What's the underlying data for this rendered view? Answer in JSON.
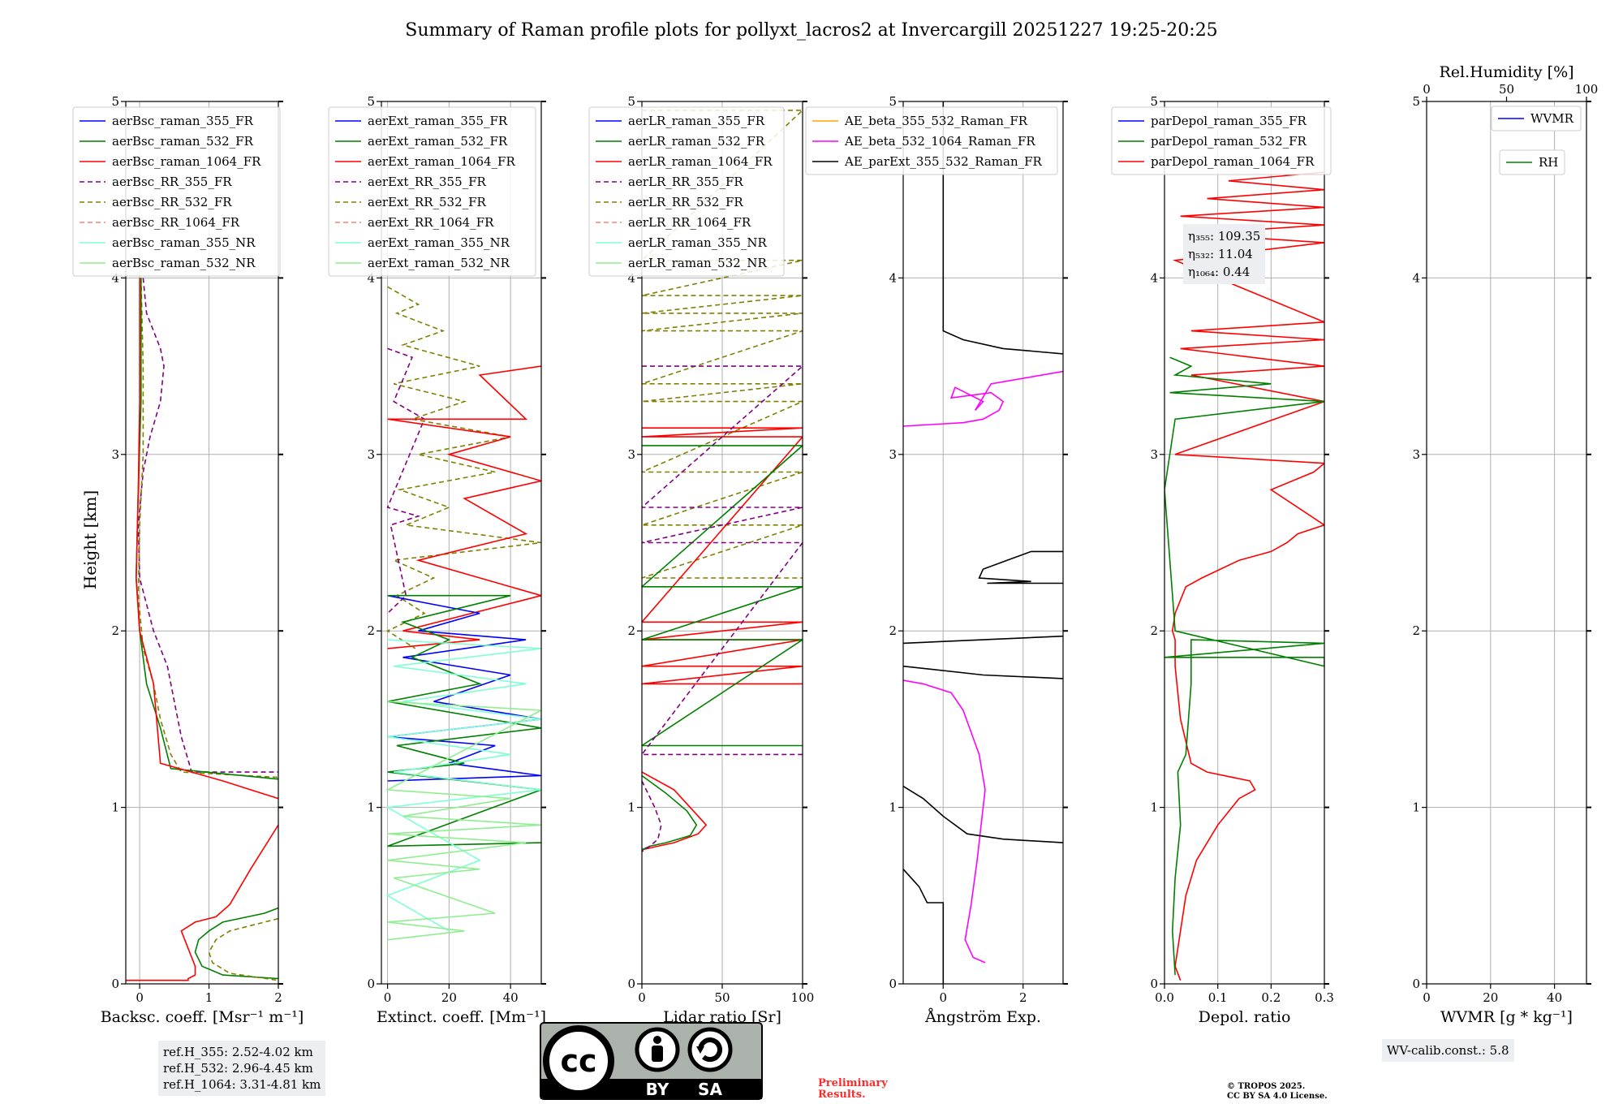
{
  "title": "Summary of Raman profile plots for pollyxt_lacros2 at Invercargill 20251227 19:25-20:25",
  "y_axis_label": "Height [km]",
  "y_ticks": [
    "0",
    "1",
    "2",
    "3",
    "4",
    "5"
  ],
  "colors": {
    "blue": "#0000ff",
    "green": "#008000",
    "red": "#ff0000",
    "purple": "#800080",
    "olive": "#808000",
    "salmon": "#fa8072",
    "cyan": "#7fffd4",
    "lightgreen": "#90ee90",
    "orange": "#ffa500",
    "magenta": "#ff00ff",
    "black": "#000000"
  },
  "chart_data": [
    {
      "type": "line",
      "xlabel": "Backsc. coeff. [Msr⁻¹ m⁻¹]",
      "xlim": [
        -0.2,
        2
      ],
      "ylim": [
        0,
        5
      ],
      "xticks": [
        "0",
        "1",
        "2"
      ],
      "legend": [
        "aerBsc_raman_355_FR",
        "aerBsc_raman_532_FR",
        "aerBsc_raman_1064_FR",
        "aerBsc_RR_355_FR",
        "aerBsc_RR_532_FR",
        "aerBsc_RR_1064_FR",
        "aerBsc_raman_355_NR",
        "aerBsc_raman_532_NR"
      ],
      "series": [
        {
          "name": "aerBsc_RR_355_FR",
          "x": [
            0.05,
            0.1,
            0.2,
            0.3,
            0.35,
            0.3,
            0.15,
            0.05,
            -0.02,
            0.0,
            0.2,
            0.4,
            0.5,
            0.6,
            0.75,
            2.0
          ],
          "y": [
            4.0,
            3.8,
            3.7,
            3.6,
            3.5,
            3.3,
            3.1,
            2.9,
            2.6,
            2.3,
            2.0,
            1.8,
            1.6,
            1.4,
            1.2,
            1.2
          ]
        },
        {
          "name": "aerBsc_RR_532_FR",
          "x": [
            0.02,
            0.05,
            0.05,
            0.0,
            -0.02,
            0.05,
            0.2,
            0.3,
            0.45,
            0.6,
            2.0
          ],
          "y": [
            4.0,
            3.5,
            3.0,
            2.6,
            2.2,
            1.9,
            1.7,
            1.5,
            1.3,
            1.2,
            1.17
          ]
        },
        {
          "name": "aerBsc_raman_532_FR",
          "x": [
            0.02,
            0.02,
            -0.02,
            -0.05,
            0.0,
            0.1,
            0.3,
            0.45,
            2.0
          ],
          "y": [
            4.0,
            3.3,
            2.8,
            2.3,
            2.0,
            1.7,
            1.45,
            1.22,
            1.16
          ]
        },
        {
          "name": "aerBsc_raman_1064_FR",
          "x": [
            0.0,
            0.0,
            -0.02,
            -0.05,
            0.0,
            0.2,
            0.3,
            1.2,
            2.0
          ],
          "y": [
            4.0,
            3.3,
            2.8,
            2.3,
            2.0,
            1.7,
            1.25,
            1.15,
            1.05
          ]
        },
        {
          "name": "aerBsc_raman_1064_FR_low",
          "x": [
            2.0,
            1.6,
            1.3,
            1.1,
            0.8,
            0.6,
            0.8,
            0.8,
            0.7,
            0.7,
            -0.2
          ],
          "y": [
            0.9,
            0.65,
            0.45,
            0.38,
            0.35,
            0.3,
            0.1,
            0.05,
            0.03,
            0.02,
            0.02
          ]
        },
        {
          "name": "aerBsc_raman_532_FR_low",
          "x": [
            2.0,
            1.8,
            1.2,
            1.0,
            0.85,
            0.8,
            0.9,
            1.2,
            2.0
          ],
          "y": [
            0.43,
            0.4,
            0.35,
            0.3,
            0.25,
            0.18,
            0.1,
            0.05,
            0.03
          ]
        },
        {
          "name": "aerBsc_RR_532_FR_low",
          "x": [
            2.0,
            1.8,
            1.3,
            1.1,
            1.0,
            1.05,
            1.3,
            2.0
          ],
          "y": [
            0.37,
            0.35,
            0.3,
            0.25,
            0.18,
            0.12,
            0.06,
            0.02
          ]
        }
      ],
      "annotations": [
        "ref.H_355: 2.52-4.02 km",
        "ref.H_532: 2.96-4.45 km",
        "ref.H_1064: 3.31-4.81 km"
      ]
    },
    {
      "type": "line",
      "xlabel": "Extinct. coeff. [Mm⁻¹]",
      "xlim": [
        -2,
        50
      ],
      "ylim": [
        0,
        5
      ],
      "xticks": [
        "0",
        "20",
        "40"
      ],
      "legend": [
        "aerExt_raman_355_FR",
        "aerExt_raman_532_FR",
        "aerExt_raman_1064_FR",
        "aerExt_RR_355_FR",
        "aerExt_RR_532_FR",
        "aerExt_RR_1064_FR",
        "aerExt_raman_355_NR",
        "aerExt_raman_532_NR"
      ],
      "series": [
        {
          "name": "aerExt_RR_532_FR",
          "x": [
            0,
            10,
            3,
            18,
            5,
            30,
            2,
            25,
            8,
            40,
            10,
            35,
            4,
            20,
            6,
            50,
            2,
            15,
            3,
            12,
            0,
            9
          ],
          "y": [
            3.95,
            3.85,
            3.8,
            3.7,
            3.62,
            3.5,
            3.4,
            3.3,
            3.2,
            3.1,
            3.0,
            2.9,
            2.8,
            2.7,
            2.6,
            2.5,
            2.4,
            2.3,
            2.2,
            2.1,
            2.0,
            1.9
          ]
        },
        {
          "name": "aerExt_RR_355_FR",
          "x": [
            0,
            8,
            2,
            12,
            0,
            10,
            1,
            6,
            0
          ],
          "y": [
            3.6,
            3.55,
            3.3,
            3.2,
            2.7,
            2.65,
            2.6,
            2.2,
            2.1
          ]
        },
        {
          "name": "aerExt_raman_1064_FR",
          "x": [
            50,
            30,
            45,
            0,
            40,
            20,
            50,
            25,
            45,
            10,
            50,
            5,
            30,
            0
          ],
          "y": [
            3.5,
            3.45,
            3.2,
            3.2,
            3.1,
            3.0,
            2.85,
            2.75,
            2.55,
            2.4,
            2.2,
            2.0,
            1.95,
            1.9
          ]
        },
        {
          "name": "aerExt_raman_355_FR",
          "x": [
            0,
            30,
            10,
            45,
            5,
            40,
            15,
            50,
            0,
            35,
            20,
            50,
            0
          ],
          "y": [
            2.2,
            2.1,
            2.0,
            1.95,
            1.85,
            1.75,
            1.6,
            1.5,
            1.4,
            1.35,
            1.25,
            1.18,
            1.15
          ]
        },
        {
          "name": "aerExt_raman_532_FR",
          "x": [
            0,
            40,
            5,
            20,
            8,
            30,
            0,
            50,
            3,
            25,
            0,
            50,
            0,
            50
          ],
          "y": [
            2.2,
            2.2,
            2.05,
            1.95,
            1.85,
            1.7,
            1.6,
            1.45,
            1.35,
            1.25,
            1.2,
            1.1,
            0.78,
            0.8
          ]
        },
        {
          "name": "aerExt_raman_355_NR",
          "x": [
            0,
            50,
            2,
            45,
            5,
            50,
            0,
            40,
            2,
            50,
            0,
            30,
            0,
            20
          ],
          "y": [
            1.95,
            1.9,
            1.8,
            1.7,
            1.6,
            1.5,
            1.4,
            1.3,
            1.2,
            1.1,
            1.0,
            0.7,
            0.5,
            0.3
          ]
        },
        {
          "name": "aerExt_raman_532_NR",
          "x": [
            0,
            50,
            0,
            40,
            5,
            50,
            0,
            45,
            0,
            30,
            2,
            35,
            0,
            25,
            0
          ],
          "y": [
            1.6,
            1.55,
            1.1,
            1.05,
            0.95,
            0.9,
            0.85,
            0.8,
            0.7,
            0.65,
            0.6,
            0.4,
            0.35,
            0.3,
            0.25
          ]
        }
      ]
    },
    {
      "type": "line",
      "xlabel": "Lidar ratio [Sr]",
      "xlim": [
        0,
        100
      ],
      "ylim": [
        0,
        5
      ],
      "xticks": [
        "0",
        "50",
        "100"
      ],
      "legend": [
        "aerLR_raman_355_FR",
        "aerLR_raman_532_FR",
        "aerLR_raman_1064_FR",
        "aerLR_RR_355_FR",
        "aerLR_RR_532_FR",
        "aerLR_RR_1064_FR",
        "aerLR_raman_355_NR",
        "aerLR_raman_532_NR"
      ],
      "series": [
        {
          "name": "aerLR_RR_532_FR",
          "x": [
            0,
            100,
            0,
            100,
            0,
            100,
            0,
            100,
            0,
            100,
            0,
            100,
            0,
            100,
            0,
            100,
            0,
            100,
            0,
            100
          ],
          "y": [
            4.95,
            4.95,
            4.1,
            4.1,
            3.9,
            3.9,
            3.8,
            3.8,
            3.7,
            3.7,
            3.4,
            3.4,
            3.3,
            3.3,
            2.9,
            2.9,
            2.6,
            2.6,
            2.3,
            2.3
          ]
        },
        {
          "name": "aerLR_raman_1064_FR",
          "x": [
            0,
            100,
            0,
            100,
            0,
            100,
            0,
            100,
            0,
            100,
            0,
            100
          ],
          "y": [
            3.15,
            3.15,
            3.1,
            3.1,
            2.05,
            2.05,
            1.95,
            1.95,
            1.8,
            1.8,
            1.7,
            1.7
          ]
        },
        {
          "name": "aerLR_raman_532_FR",
          "x": [
            0,
            100,
            0,
            100,
            0,
            100,
            0,
            100
          ],
          "y": [
            3.05,
            3.05,
            2.25,
            2.25,
            1.95,
            1.95,
            1.35,
            1.35
          ]
        },
        {
          "name": "aerLR_RR_355_FR",
          "x": [
            0,
            100,
            0,
            100,
            0,
            100,
            0,
            100
          ],
          "y": [
            3.5,
            3.5,
            2.7,
            2.7,
            2.5,
            2.5,
            1.3,
            1.3
          ]
        },
        {
          "name": "aerLR_raman_1064_FR_low",
          "x": [
            0,
            20,
            30,
            40,
            35,
            20,
            10,
            0
          ],
          "y": [
            1.2,
            1.1,
            1.0,
            0.9,
            0.85,
            0.8,
            0.78,
            0.76
          ]
        },
        {
          "name": "aerLR_raman_532_FR_low",
          "x": [
            0,
            15,
            28,
            34,
            30,
            15,
            5,
            0
          ],
          "y": [
            1.18,
            1.08,
            0.98,
            0.9,
            0.84,
            0.8,
            0.78,
            0.76
          ]
        },
        {
          "name": "aerLR_RR_355_FR_low",
          "x": [
            0,
            8,
            12,
            10,
            5,
            0
          ],
          "y": [
            1.15,
            1.0,
            0.9,
            0.82,
            0.78,
            0.75
          ]
        }
      ]
    },
    {
      "type": "line",
      "xlabel": "Ångström Exp.",
      "xlim": [
        -1,
        3
      ],
      "ylim": [
        0,
        5
      ],
      "xticks": [
        "0",
        "2"
      ],
      "legend": [
        "AE_beta_355_532_Raman_FR",
        "AE_beta_532_1064_Raman_FR",
        "AE_parExt_355_532_Raman_FR"
      ],
      "series": [
        {
          "name": "AE_beta_532_1064_Raman_FR",
          "x": [
            -1,
            0.5,
            1.0,
            1.4,
            1.5,
            1.2,
            0.2,
            0.3,
            1.0,
            0.8,
            1.2,
            3
          ],
          "y": [
            3.16,
            3.18,
            3.2,
            3.25,
            3.3,
            3.35,
            3.32,
            3.38,
            3.3,
            3.25,
            3.4,
            3.47
          ]
        },
        {
          "name": "AE_beta_532_1064_Raman_FR_low",
          "x": [
            1.05,
            0.75,
            0.55,
            0.7,
            0.85,
            0.95,
            1.05,
            0.9,
            0.5,
            0.2,
            -0.5,
            -1
          ],
          "y": [
            0.12,
            0.15,
            0.25,
            0.45,
            0.7,
            0.9,
            1.1,
            1.3,
            1.55,
            1.65,
            1.7,
            1.72
          ]
        },
        {
          "name": "AE_parExt_355_532_Raman_FR",
          "x": [
            0,
            0,
            0.5,
            1.5,
            3
          ],
          "y": [
            5.0,
            3.7,
            3.65,
            3.6,
            3.57
          ]
        },
        {
          "name": "AE_parExt_355_532_Raman_FR_mid",
          "x": [
            3,
            2.2,
            1.6,
            1.0,
            0.9,
            2.2,
            1.1,
            3
          ],
          "y": [
            2.45,
            2.45,
            2.4,
            2.35,
            2.3,
            2.28,
            2.27,
            2.27
          ]
        },
        {
          "name": "AE_parExt_355_532_Raman_FR_lower",
          "x": [
            -1,
            1,
            3
          ],
          "y": [
            1.93,
            1.95,
            1.97
          ]
        },
        {
          "name": "AE_parExt_355_532_Raman_FR_lower2",
          "x": [
            -1,
            1,
            3
          ],
          "y": [
            1.8,
            1.75,
            1.73
          ]
        },
        {
          "name": "AE_parExt_355_532_Raman_FR_low",
          "x": [
            -1,
            -0.5,
            0,
            0.6,
            1.5,
            3
          ],
          "y": [
            1.12,
            1.05,
            0.95,
            0.85,
            0.82,
            0.8
          ]
        },
        {
          "name": "AE_parExt_355_532_Raman_FR_bottom",
          "x": [
            -1,
            -0.6,
            -0.4,
            0,
            0
          ],
          "y": [
            0.65,
            0.55,
            0.46,
            0.46,
            0
          ]
        }
      ]
    },
    {
      "type": "line",
      "xlabel": "Depol. ratio",
      "xlim": [
        0,
        0.3
      ],
      "ylim": [
        0,
        5
      ],
      "xticks": [
        "0.0",
        "0.1",
        "0.2",
        "0.3"
      ],
      "legend": [
        "parDepol_raman_355_FR",
        "parDepol_raman_532_FR",
        "parDepol_raman_1064_FR"
      ],
      "annotations": [
        "η₃₅₅: 109.35",
        "η₅₃₂: 11.04",
        "η₁₀₆₄: 0.44"
      ],
      "series": [
        {
          "name": "parDepol_raman_1064_FR",
          "x": [
            0.03,
            0.02,
            0.03,
            0.04,
            0.06,
            0.1,
            0.14,
            0.17,
            0.16,
            0.08,
            0.05,
            0.03,
            0.02,
            0.02,
            0.015,
            0.02,
            0.04,
            0.07,
            0.14,
            0.2,
            0.23,
            0.25,
            0.3,
            0.2,
            0.28,
            0.3,
            0.02,
            0.3,
            0.05,
            0.3,
            0.03,
            0.3,
            0.05,
            0.3,
            0.02,
            0.3,
            0.05,
            0.3,
            0.03,
            0.3,
            0.08,
            0.3,
            0.12,
            0.3,
            0.3
          ],
          "y": [
            0.02,
            0.1,
            0.3,
            0.5,
            0.7,
            0.9,
            1.05,
            1.1,
            1.15,
            1.2,
            1.25,
            1.5,
            1.8,
            1.95,
            2.0,
            2.1,
            2.25,
            2.3,
            2.4,
            2.45,
            2.5,
            2.55,
            2.6,
            2.8,
            2.9,
            2.95,
            3.0,
            3.3,
            3.45,
            3.5,
            3.6,
            3.65,
            3.7,
            3.75,
            4.1,
            4.2,
            4.25,
            4.3,
            4.35,
            4.4,
            4.45,
            4.5,
            4.55,
            4.6,
            4.6
          ]
        },
        {
          "name": "parDepol_raman_532_FR",
          "x": [
            0.02,
            0.015,
            0.02,
            0.03,
            0.025,
            0.04,
            0.05,
            0.05,
            0.3,
            0.0,
            0.3,
            0.3,
            0.02,
            0.01,
            0.0,
            0.02,
            0.3,
            0.01,
            0.2,
            0.02,
            0.05,
            0.01
          ],
          "y": [
            0.05,
            0.3,
            0.6,
            0.9,
            1.2,
            1.3,
            1.7,
            1.95,
            1.93,
            1.85,
            1.85,
            1.8,
            2.0,
            2.4,
            2.8,
            3.2,
            3.3,
            3.35,
            3.4,
            3.45,
            3.5,
            3.55
          ]
        }
      ]
    },
    {
      "type": "line",
      "xlabel": "WVMR [g * kg⁻¹]",
      "xlim": [
        0,
        50
      ],
      "ylim": [
        0,
        5
      ],
      "xticks": [
        "0",
        "20",
        "40"
      ],
      "top_xlabel": "Rel.Humidity [%]",
      "top_xticks": [
        "0",
        "50",
        "100"
      ],
      "legend": [
        "WVMR",
        "RH"
      ],
      "series": [],
      "annotations": [
        "WV-calib.const.: 5.8"
      ]
    }
  ],
  "cc_badge": {
    "left": "BY",
    "right": "SA",
    "mark": "cc"
  },
  "preliminary_note": [
    "Preliminary",
    "Results."
  ],
  "copyright_note": [
    "© TROPOS 2025.",
    "CC BY SA 4.0 License."
  ]
}
